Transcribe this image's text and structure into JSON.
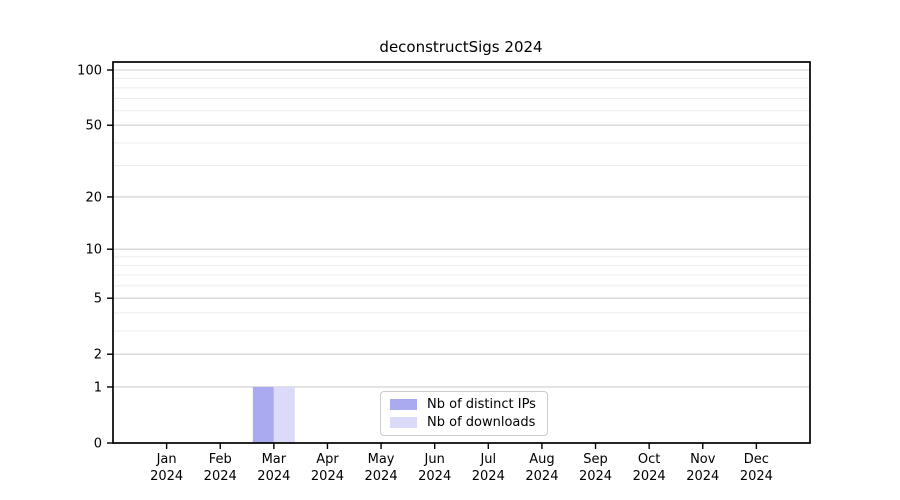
{
  "chart_data": {
    "type": "bar",
    "title": "deconstructSigs 2024",
    "categories": [
      "Jan",
      "Feb",
      "Mar",
      "Apr",
      "May",
      "Jun",
      "Jul",
      "Aug",
      "Sep",
      "Oct",
      "Nov",
      "Dec"
    ],
    "category_year": "2024",
    "series": [
      {
        "name": "Nb of distinct IPs",
        "color": "#aaaaf0",
        "values": [
          0,
          0,
          1,
          0,
          0,
          0,
          0,
          0,
          0,
          0,
          0,
          0
        ]
      },
      {
        "name": "Nb of downloads",
        "color": "#dbdaf8",
        "values": [
          0,
          0,
          1,
          0,
          0,
          0,
          0,
          0,
          0,
          0,
          0,
          0
        ]
      }
    ],
    "yscale": "log10(value+1)",
    "yticks_major": [
      0,
      1,
      2,
      5,
      10,
      20,
      50,
      100
    ],
    "yticks_minor": [
      3,
      4,
      6,
      7,
      8,
      9,
      30,
      40,
      60,
      70,
      80,
      90
    ],
    "ylim": [
      0,
      110
    ],
    "grid": "horizontal",
    "legend_position": "bottom-center"
  },
  "colors": {
    "background": "#ffffff",
    "axis": "#000000",
    "grid_major": "#cdcdcd",
    "grid_minor": "#ededed"
  }
}
